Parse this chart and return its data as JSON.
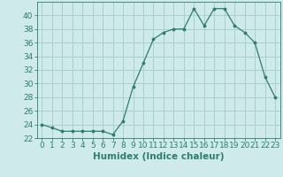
{
  "x": [
    0,
    1,
    2,
    3,
    4,
    5,
    6,
    7,
    8,
    9,
    10,
    11,
    12,
    13,
    14,
    15,
    16,
    17,
    18,
    19,
    20,
    21,
    22,
    23
  ],
  "y": [
    24,
    23.5,
    23,
    23,
    23,
    23,
    23,
    22.5,
    24.5,
    29.5,
    33,
    36.5,
    37.5,
    38,
    38,
    41,
    38.5,
    41,
    41,
    38.5,
    37.5,
    36,
    31,
    28
  ],
  "line_color": "#2e7d6e",
  "marker_color": "#2e7d6e",
  "bg_color": "#ceeaea",
  "grid_color": "#aacece",
  "xlabel": "Humidex (Indice chaleur)",
  "ylim": [
    22,
    42
  ],
  "yticks": [
    22,
    24,
    26,
    28,
    30,
    32,
    34,
    36,
    38,
    40
  ],
  "xlim": [
    -0.5,
    23.5
  ],
  "xticks": [
    0,
    1,
    2,
    3,
    4,
    5,
    6,
    7,
    8,
    9,
    10,
    11,
    12,
    13,
    14,
    15,
    16,
    17,
    18,
    19,
    20,
    21,
    22,
    23
  ],
  "axis_fontsize": 6.5,
  "label_fontsize": 7.5
}
